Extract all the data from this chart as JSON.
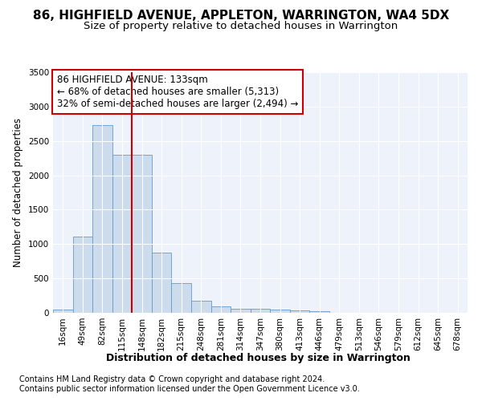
{
  "title": "86, HIGHFIELD AVENUE, APPLETON, WARRINGTON, WA4 5DX",
  "subtitle": "Size of property relative to detached houses in Warrington",
  "xlabel": "Distribution of detached houses by size in Warrington",
  "ylabel": "Number of detached properties",
  "bar_color": "#ccdcec",
  "bar_edge_color": "#6699cc",
  "background_color": "#eef2fb",
  "grid_color": "#ffffff",
  "categories": [
    "16sqm",
    "49sqm",
    "82sqm",
    "115sqm",
    "148sqm",
    "182sqm",
    "215sqm",
    "248sqm",
    "281sqm",
    "314sqm",
    "347sqm",
    "380sqm",
    "413sqm",
    "446sqm",
    "479sqm",
    "513sqm",
    "546sqm",
    "579sqm",
    "612sqm",
    "645sqm",
    "678sqm"
  ],
  "values": [
    50,
    1110,
    2730,
    2300,
    2300,
    880,
    430,
    175,
    95,
    60,
    55,
    50,
    30,
    20,
    0,
    0,
    0,
    0,
    0,
    0,
    0
  ],
  "ylim": [
    0,
    3500
  ],
  "yticks": [
    0,
    500,
    1000,
    1500,
    2000,
    2500,
    3000,
    3500
  ],
  "vline_color": "#cc0000",
  "vline_index": 3.5,
  "annotation_text": "86 HIGHFIELD AVENUE: 133sqm\n← 68% of detached houses are smaller (5,313)\n32% of semi-detached houses are larger (2,494) →",
  "annotation_box_color": "#cc0000",
  "footnote1": "Contains HM Land Registry data © Crown copyright and database right 2024.",
  "footnote2": "Contains public sector information licensed under the Open Government Licence v3.0.",
  "title_fontsize": 11,
  "subtitle_fontsize": 9.5,
  "xlabel_fontsize": 9,
  "ylabel_fontsize": 8.5,
  "tick_fontsize": 7.5,
  "annotation_fontsize": 8.5,
  "footnote_fontsize": 7
}
